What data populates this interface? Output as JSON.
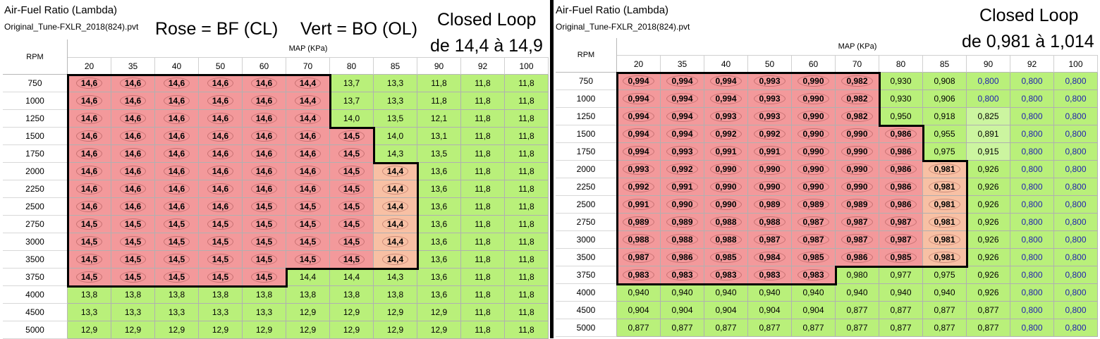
{
  "left": {
    "title": "Air-Fuel Ratio (Lambda)",
    "filename": "Original_Tune-FXLR_2018(824).pvt",
    "annotation_rose": "Rose = BF (CL)",
    "annotation_vert": "Vert = BO (OL)",
    "annotation_cl1": "Closed Loop",
    "annotation_cl2": "de 14,4 à 14,9",
    "rpm_label": "RPM",
    "map_label": "MAP (KPa)",
    "columns": [
      "20",
      "35",
      "40",
      "50",
      "60",
      "70",
      "80",
      "85",
      "90",
      "92",
      "100"
    ],
    "rows": [
      {
        "rpm": "750",
        "cells": [
          "14,6",
          "14,6",
          "14,6",
          "14,6",
          "14,6",
          "14,4",
          "13,7",
          "13,3",
          "11,8",
          "11,8",
          "11,8"
        ]
      },
      {
        "rpm": "1000",
        "cells": [
          "14,6",
          "14,6",
          "14,6",
          "14,6",
          "14,6",
          "14,4",
          "13,7",
          "13,3",
          "11,8",
          "11,8",
          "11,8"
        ]
      },
      {
        "rpm": "1250",
        "cells": [
          "14,6",
          "14,6",
          "14,6",
          "14,6",
          "14,6",
          "14,4",
          "14,0",
          "13,5",
          "12,1",
          "11,8",
          "11,8"
        ]
      },
      {
        "rpm": "1500",
        "cells": [
          "14,6",
          "14,6",
          "14,6",
          "14,6",
          "14,6",
          "14,6",
          "14,5",
          "14,0",
          "13,1",
          "11,8",
          "11,8"
        ]
      },
      {
        "rpm": "1750",
        "cells": [
          "14,6",
          "14,6",
          "14,6",
          "14,6",
          "14,6",
          "14,6",
          "14,5",
          "14,3",
          "13,5",
          "11,8",
          "11,8"
        ]
      },
      {
        "rpm": "2000",
        "cells": [
          "14,6",
          "14,6",
          "14,6",
          "14,6",
          "14,6",
          "14,6",
          "14,5",
          "14,4",
          "13,6",
          "11,8",
          "11,8"
        ]
      },
      {
        "rpm": "2250",
        "cells": [
          "14,6",
          "14,6",
          "14,6",
          "14,6",
          "14,6",
          "14,6",
          "14,5",
          "14,4",
          "13,6",
          "11,8",
          "11,8"
        ]
      },
      {
        "rpm": "2500",
        "cells": [
          "14,6",
          "14,6",
          "14,6",
          "14,6",
          "14,5",
          "14,5",
          "14,5",
          "14,4",
          "13,6",
          "11,8",
          "11,8"
        ]
      },
      {
        "rpm": "2750",
        "cells": [
          "14,5",
          "14,5",
          "14,5",
          "14,5",
          "14,5",
          "14,5",
          "14,5",
          "14,4",
          "13,6",
          "11,8",
          "11,8"
        ]
      },
      {
        "rpm": "3000",
        "cells": [
          "14,5",
          "14,5",
          "14,5",
          "14,5",
          "14,5",
          "14,5",
          "14,5",
          "14,4",
          "13,6",
          "11,8",
          "11,8"
        ]
      },
      {
        "rpm": "3500",
        "cells": [
          "14,5",
          "14,5",
          "14,5",
          "14,5",
          "14,5",
          "14,5",
          "14,5",
          "14,4",
          "13,6",
          "11,8",
          "11,8"
        ]
      },
      {
        "rpm": "3750",
        "cells": [
          "14,5",
          "14,5",
          "14,5",
          "14,5",
          "14,5",
          "14,4",
          "14,4",
          "14,3",
          "13,6",
          "11,8",
          "11,8"
        ]
      },
      {
        "rpm": "4000",
        "cells": [
          "13,8",
          "13,8",
          "13,8",
          "13,8",
          "13,8",
          "13,8",
          "13,8",
          "13,8",
          "13,6",
          "11,8",
          "11,8"
        ]
      },
      {
        "rpm": "4500",
        "cells": [
          "13,3",
          "13,3",
          "13,3",
          "13,3",
          "13,3",
          "12,9",
          "12,9",
          "12,9",
          "12,9",
          "11,8",
          "11,8"
        ]
      },
      {
        "rpm": "5000",
        "cells": [
          "12,9",
          "12,9",
          "12,9",
          "12,9",
          "12,9",
          "12,9",
          "12,9",
          "12,9",
          "12,9",
          "11,8",
          "11,8"
        ]
      }
    ],
    "closed_loop_counts": [
      6,
      6,
      6,
      7,
      7,
      8,
      8,
      8,
      8,
      8,
      8,
      5,
      0,
      0,
      0
    ],
    "colors": {
      "closed_loop": "#f3999b",
      "closed_loop_edge": "#f8c0a4",
      "open_loop": "#b9f07a"
    }
  },
  "right": {
    "title": "Air-Fuel Ratio (Lambda)",
    "filename": "Original_Tune-FXLR_2018(824).pvt",
    "annotation_cl1": "Closed Loop",
    "annotation_cl2": "de 0,981 à 1,014",
    "rpm_label": "RPM",
    "map_label": "MAP (KPa)",
    "columns": [
      "20",
      "35",
      "40",
      "50",
      "60",
      "70",
      "80",
      "85",
      "90",
      "92",
      "100"
    ],
    "rows": [
      {
        "rpm": "750",
        "cells": [
          "0,994",
          "0,994",
          "0,994",
          "0,993",
          "0,990",
          "0,982",
          "0,930",
          "0,908",
          "0,800",
          "0,800",
          "0,800"
        ]
      },
      {
        "rpm": "1000",
        "cells": [
          "0,994",
          "0,994",
          "0,994",
          "0,993",
          "0,990",
          "0,982",
          "0,930",
          "0,906",
          "0,800",
          "0,800",
          "0,800"
        ]
      },
      {
        "rpm": "1250",
        "cells": [
          "0,994",
          "0,994",
          "0,993",
          "0,993",
          "0,990",
          "0,982",
          "0,950",
          "0,918",
          "0,825",
          "0,800",
          "0,800"
        ]
      },
      {
        "rpm": "1500",
        "cells": [
          "0,994",
          "0,994",
          "0,992",
          "0,992",
          "0,990",
          "0,990",
          "0,986",
          "0,955",
          "0,891",
          "0,800",
          "0,800"
        ]
      },
      {
        "rpm": "1750",
        "cells": [
          "0,994",
          "0,993",
          "0,991",
          "0,991",
          "0,990",
          "0,990",
          "0,986",
          "0,975",
          "0,915",
          "0,800",
          "0,800"
        ]
      },
      {
        "rpm": "2000",
        "cells": [
          "0,993",
          "0,992",
          "0,990",
          "0,990",
          "0,990",
          "0,990",
          "0,986",
          "0,981",
          "0,926",
          "0,800",
          "0,800"
        ]
      },
      {
        "rpm": "2250",
        "cells": [
          "0,992",
          "0,991",
          "0,990",
          "0,990",
          "0,990",
          "0,990",
          "0,986",
          "0,981",
          "0,926",
          "0,800",
          "0,800"
        ]
      },
      {
        "rpm": "2500",
        "cells": [
          "0,991",
          "0,990",
          "0,990",
          "0,989",
          "0,989",
          "0,989",
          "0,986",
          "0,981",
          "0,926",
          "0,800",
          "0,800"
        ]
      },
      {
        "rpm": "2750",
        "cells": [
          "0,989",
          "0,989",
          "0,988",
          "0,988",
          "0,987",
          "0,987",
          "0,987",
          "0,981",
          "0,926",
          "0,800",
          "0,800"
        ]
      },
      {
        "rpm": "3000",
        "cells": [
          "0,988",
          "0,988",
          "0,988",
          "0,987",
          "0,987",
          "0,987",
          "0,987",
          "0,981",
          "0,926",
          "0,800",
          "0,800"
        ]
      },
      {
        "rpm": "3500",
        "cells": [
          "0,987",
          "0,986",
          "0,985",
          "0,984",
          "0,985",
          "0,986",
          "0,985",
          "0,981",
          "0,926",
          "0,800",
          "0,800"
        ]
      },
      {
        "rpm": "3750",
        "cells": [
          "0,983",
          "0,983",
          "0,983",
          "0,983",
          "0,983",
          "0,980",
          "0,977",
          "0,975",
          "0,926",
          "0,800",
          "0,800"
        ]
      },
      {
        "rpm": "4000",
        "cells": [
          "0,940",
          "0,940",
          "0,940",
          "0,940",
          "0,940",
          "0,940",
          "0,940",
          "0,940",
          "0,926",
          "0,800",
          "0,800"
        ]
      },
      {
        "rpm": "4500",
        "cells": [
          "0,904",
          "0,904",
          "0,904",
          "0,904",
          "0,904",
          "0,877",
          "0,877",
          "0,877",
          "0,877",
          "0,800",
          "0,800"
        ]
      },
      {
        "rpm": "5000",
        "cells": [
          "0,877",
          "0,877",
          "0,877",
          "0,877",
          "0,877",
          "0,877",
          "0,877",
          "0,877",
          "0,877",
          "0,800",
          "0,800"
        ]
      }
    ],
    "closed_loop_counts": [
      6,
      6,
      6,
      7,
      7,
      8,
      8,
      8,
      8,
      8,
      8,
      5,
      0,
      0,
      0
    ],
    "colors": {
      "closed_loop": "#f3999b",
      "closed_loop_edge": "#f8c0a4",
      "open_loop": "#b9f07a",
      "open_loop_text": "#2020b0"
    }
  }
}
